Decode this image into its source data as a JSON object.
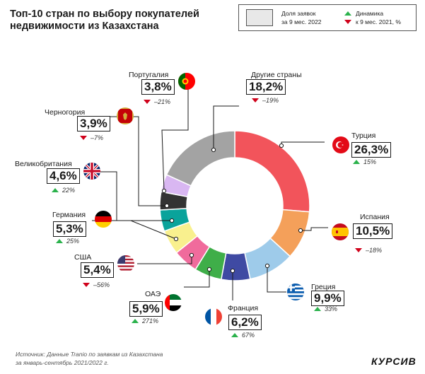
{
  "title_line1": "Топ-10 стран по выбору покупателей",
  "title_line2": "недвижимости из Казахстана",
  "legend": {
    "share_label1": "Доля заявок",
    "share_label2": "за 9 мес. 2022",
    "dyn_label1": "Динамика",
    "dyn_label2": "к 9 мес. 2021, %"
  },
  "source_line1": "Источник: Данные Tranio по заявкам из Казахстана",
  "source_line2": "за январь-сентябрь 2021/2022 г.",
  "logo": "КУРСИВ",
  "chart_data": {
    "type": "pie",
    "title": "Топ-10 стран по выбору покупателей недвижимости из Казахстана",
    "units": "%",
    "slices": [
      {
        "name": "Турция",
        "value": 26.3,
        "value_label": "26,3%",
        "change": 15,
        "change_label": "15%",
        "direction": "up",
        "color": "#f2545b"
      },
      {
        "name": "Испания",
        "value": 10.5,
        "value_label": "10,5%",
        "change": -18,
        "change_label": "–18%",
        "direction": "down",
        "color": "#f4a05a"
      },
      {
        "name": "Греция",
        "value": 9.9,
        "value_label": "9,9%",
        "change": 33,
        "change_label": "33%",
        "direction": "up",
        "color": "#9ecbea"
      },
      {
        "name": "Франция",
        "value": 6.2,
        "value_label": "6,2%",
        "change": 67,
        "change_label": "67%",
        "direction": "up",
        "color": "#3f4aa3"
      },
      {
        "name": "ОАЭ",
        "value": 5.9,
        "value_label": "5,9%",
        "change": 271,
        "change_label": "271%",
        "direction": "up",
        "color": "#3fae49"
      },
      {
        "name": "США",
        "value": 5.4,
        "value_label": "5,4%",
        "change": -56,
        "change_label": "–56%",
        "direction": "down",
        "color": "#f06b9c"
      },
      {
        "name": "Германия",
        "value": 5.3,
        "value_label": "5,3%",
        "change": 25,
        "change_label": "25%",
        "direction": "up",
        "color": "#f9f08e"
      },
      {
        "name": "Великобритания",
        "value": 4.6,
        "value_label": "4,6%",
        "change": 22,
        "change_label": "22%",
        "direction": "up",
        "color": "#0aa39b"
      },
      {
        "name": "Черногория",
        "value": 3.9,
        "value_label": "3,9%",
        "change": -7,
        "change_label": "–7%",
        "direction": "down",
        "color": "#333333"
      },
      {
        "name": "Португалия",
        "value": 3.8,
        "value_label": "3,8%",
        "change": -21,
        "change_label": "–21%",
        "direction": "down",
        "color": "#d9b7f2"
      },
      {
        "name": "Другие страны",
        "value": 18.2,
        "value_label": "18,2%",
        "change": -19,
        "change_label": "–19%",
        "direction": "down",
        "color": "#a3a3a3"
      }
    ]
  }
}
